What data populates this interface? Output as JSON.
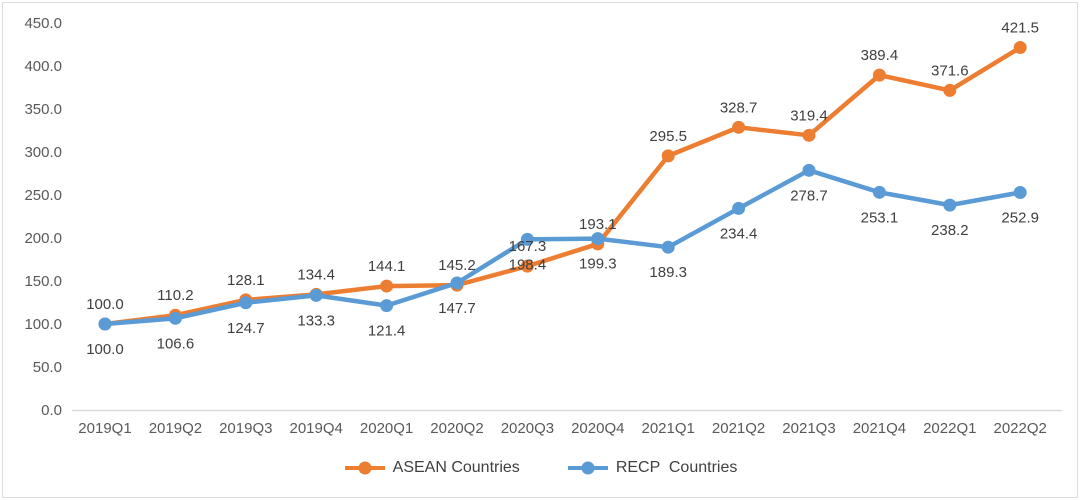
{
  "chart_data": {
    "type": "line",
    "title": "",
    "categories": [
      "2019Q1",
      "2019Q2",
      "2019Q3",
      "2019Q4",
      "2020Q1",
      "2020Q2",
      "2020Q3",
      "2020Q4",
      "2021Q1",
      "2021Q2",
      "2021Q3",
      "2021Q4",
      "2022Q1",
      "2022Q2"
    ],
    "series": [
      {
        "name": "ASEAN Countries",
        "color": "#ED7D31",
        "marker": "circle",
        "label_position": "above",
        "values": [
          100.0,
          110.2,
          128.1,
          134.4,
          144.1,
          145.2,
          167.3,
          193.1,
          295.5,
          328.7,
          319.4,
          389.4,
          371.6,
          421.5
        ]
      },
      {
        "name": "RECP  Countries",
        "color": "#5B9BD5",
        "marker": "circle",
        "label_position": "below",
        "values": [
          100.0,
          106.6,
          124.7,
          133.3,
          121.4,
          147.7,
          198.4,
          199.3,
          189.3,
          234.4,
          278.7,
          253.1,
          238.2,
          252.9
        ]
      }
    ],
    "y_axis": {
      "min": 0,
      "max": 450,
      "step": 50,
      "tick_labels": [
        "0.0",
        "50.0",
        "100.0",
        "150.0",
        "200.0",
        "250.0",
        "300.0",
        "350.0",
        "400.0",
        "450.0"
      ]
    },
    "x_axis": {
      "tick_labels": [
        "2019Q1",
        "2019Q2",
        "2019Q3",
        "2019Q4",
        "2020Q1",
        "2020Q2",
        "2020Q3",
        "2020Q4",
        "2021Q1",
        "2021Q2",
        "2021Q3",
        "2021Q4",
        "2022Q1",
        "2022Q2"
      ]
    },
    "legend": {
      "position": "bottom",
      "items": [
        "ASEAN Countries",
        "RECP  Countries"
      ]
    },
    "grid": false,
    "data_labels_shown": true,
    "colors": {
      "axis_line": "#D9D9D9",
      "tick_text": "#595959",
      "data_label_text": "#404040",
      "border": "#DCDCDC",
      "background": "#FFFFFF"
    }
  }
}
